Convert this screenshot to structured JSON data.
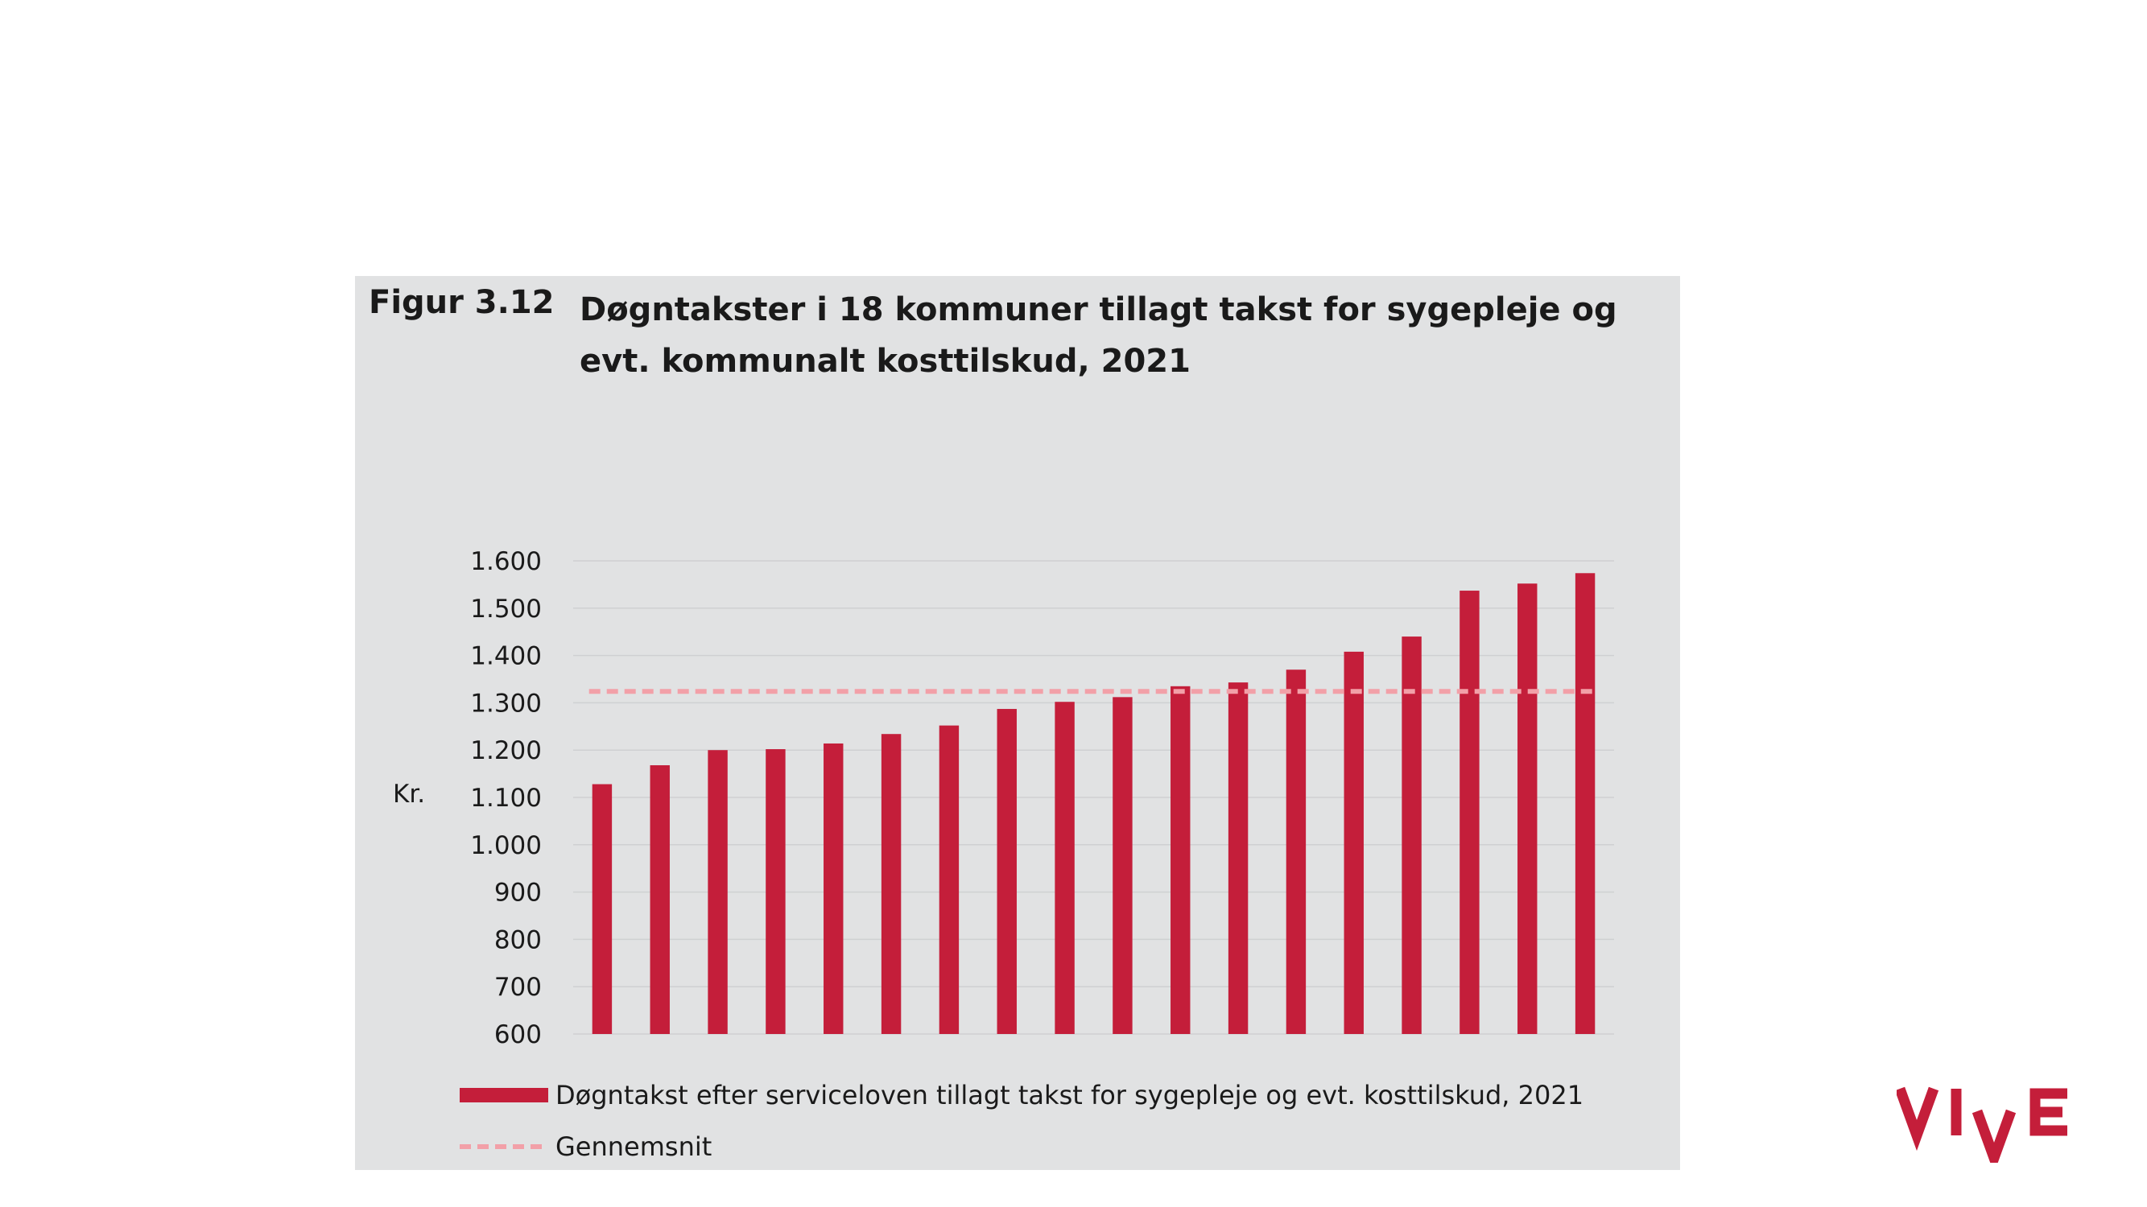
{
  "figure": {
    "label": "Figur 3.12",
    "title": "Døgntakster i 18 kommuner tillagt takst for sygepleje og evt. kommunalt kosttilskud, 2021"
  },
  "logo": {
    "text": "VIVE",
    "color": "#c41e3a"
  },
  "colors": {
    "bar": "#c41e3a",
    "average": "#f2a0a8",
    "grid": "#cfd0d2",
    "panel": "#e1e2e3"
  },
  "chart_data": {
    "type": "bar",
    "title": "Døgntakster i 18 kommuner tillagt takst for sygepleje og evt. kommunalt kosttilskud, 2021",
    "xlabel": "",
    "ylabel": "Kr.",
    "ylim": [
      600,
      1600
    ],
    "yticks": [
      600,
      700,
      800,
      900,
      1000,
      1100,
      1200,
      1300,
      1400,
      1500,
      1600
    ],
    "ytick_labels": [
      "600",
      "700",
      "800",
      "900",
      "1.000",
      "1.100",
      "1.200",
      "1.300",
      "1.400",
      "1.500",
      "1.600"
    ],
    "grid": true,
    "categories": [
      "",
      "",
      "",
      "",
      "",
      "",
      "",
      "",
      "",
      "",
      "",
      "",
      "",
      "",
      "",
      "",
      "",
      ""
    ],
    "series": [
      {
        "name": "Døgntakst efter serviceloven tillagt takst for sygepleje og evt. kosttilskud, 2021",
        "values": [
          1128,
          1168,
          1200,
          1202,
          1214,
          1234,
          1252,
          1287,
          1302,
          1312,
          1335,
          1343,
          1370,
          1408,
          1440,
          1537,
          1552,
          1574
        ]
      }
    ],
    "average": {
      "name": "Gennemsnit",
      "value": 1324
    },
    "legend": "bottom-left"
  }
}
